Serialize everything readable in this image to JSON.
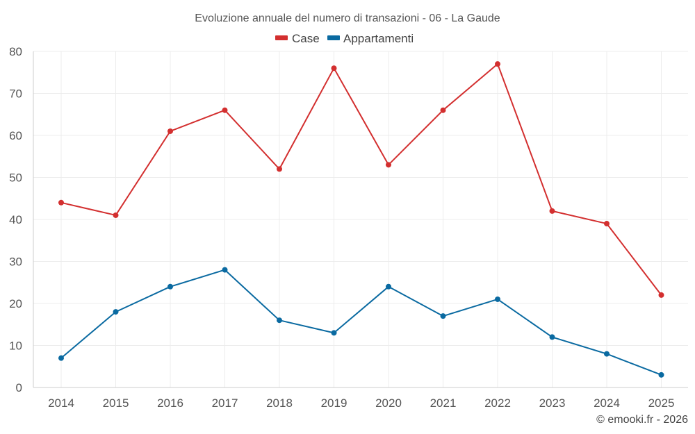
{
  "chart_data": {
    "type": "line",
    "title": "Evoluzione annuale del numero di transazioni - 06 - La Gaude",
    "categories": [
      "2014",
      "2015",
      "2016",
      "2017",
      "2018",
      "2019",
      "2020",
      "2021",
      "2022",
      "2023",
      "2024",
      "2025"
    ],
    "series": [
      {
        "name": "Case",
        "color": "#d32f2f",
        "values": [
          44,
          41,
          61,
          66,
          52,
          76,
          53,
          66,
          77,
          42,
          39,
          22
        ]
      },
      {
        "name": "Appartamenti",
        "color": "#0a6aa1",
        "values": [
          7,
          18,
          24,
          28,
          16,
          13,
          24,
          17,
          21,
          12,
          8,
          3
        ]
      }
    ],
    "ylim": [
      0,
      80
    ],
    "yticks": [
      0,
      10,
      20,
      30,
      40,
      50,
      60,
      70,
      80
    ],
    "grid": true,
    "legend_position": "top-center",
    "xlabel": "",
    "ylabel": ""
  },
  "credit": "© emooki.fr - 2026"
}
